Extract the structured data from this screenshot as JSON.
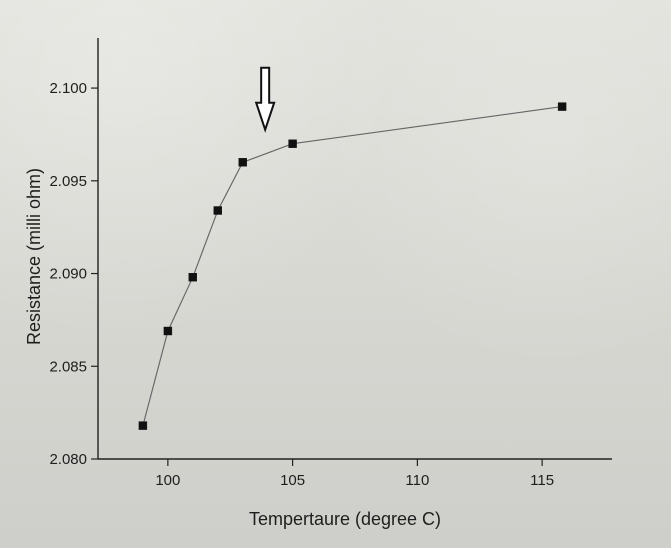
{
  "chart_data": {
    "type": "line",
    "x": [
      99,
      100,
      101,
      102,
      103,
      105,
      115.8
    ],
    "series": [
      {
        "values": [
          2.0818,
          2.0869,
          2.0898,
          2.0934,
          2.096,
          2.097,
          2.099
        ]
      }
    ],
    "xlabel": "Tempertaure (degree C)",
    "ylabel": "Resistance (milli ohm)",
    "xlim": [
      97.2,
      117.8
    ],
    "ylim": [
      2.08,
      2.1027
    ],
    "xticks": [
      100,
      105,
      110,
      115
    ],
    "yticks": [
      2.08,
      2.085,
      2.09,
      2.095,
      2.1
    ],
    "xtick_labels": [
      "100",
      "105",
      "110",
      "115"
    ],
    "ytick_labels": [
      "2.080",
      "2.085",
      "2.090",
      "2.095",
      "2.100"
    ],
    "annotations": [
      {
        "type": "down-arrow",
        "x": 103.9,
        "y": 2.0963
      }
    ],
    "grid": false
  },
  "colors": {
    "line": "#666666",
    "markers": "#111111",
    "axes": "#222222"
  }
}
